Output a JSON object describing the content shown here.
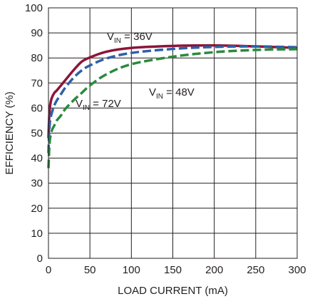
{
  "chart_data": {
    "type": "line",
    "xlabel": "LOAD CURRENT (mA)",
    "ylabel": "EFFICIENCY (%)",
    "xlim": [
      0,
      300
    ],
    "ylim": [
      0,
      100
    ],
    "x_ticks": [
      "0",
      "50",
      "100",
      "150",
      "200",
      "250",
      "300"
    ],
    "y_ticks": [
      "0",
      "10",
      "20",
      "30",
      "40",
      "50",
      "60",
      "70",
      "80",
      "90",
      "100"
    ],
    "grid": true,
    "series": [
      {
        "name_main": "V",
        "name_sub": "IN",
        "name_value": " = 36V",
        "color": "#8b1538",
        "style": "solid",
        "x": [
          0,
          0.5,
          1,
          2,
          4,
          7,
          10,
          15,
          20,
          30,
          40,
          50,
          70,
          100,
          150,
          200,
          250,
          300
        ],
        "y": [
          48,
          53,
          57,
          61,
          64,
          66,
          67,
          69,
          71,
          75,
          78.5,
          80.2,
          82.5,
          84,
          84.8,
          85,
          84.6,
          84
        ]
      },
      {
        "name_main": "V",
        "name_sub": "IN",
        "name_value": " = 48V",
        "color": "#2e5fa8",
        "style": "dashed",
        "x": [
          0,
          0.5,
          1,
          2,
          4,
          7,
          10,
          15,
          20,
          30,
          40,
          50,
          70,
          100,
          150,
          200,
          250,
          300
        ],
        "y": [
          42,
          47,
          51,
          55,
          58,
          61,
          63,
          65.5,
          68,
          72,
          75,
          77,
          79.8,
          82,
          83.6,
          84.4,
          84.6,
          84.3
        ]
      },
      {
        "name_main": "V",
        "name_sub": "IN",
        "name_value": " = 72V",
        "color": "#2a8a3c",
        "style": "dashed",
        "x": [
          0,
          0.5,
          1,
          2,
          4,
          7,
          10,
          15,
          20,
          30,
          40,
          50,
          70,
          100,
          150,
          200,
          250,
          300
        ],
        "y": [
          36,
          40,
          44,
          48,
          51,
          53,
          55,
          57,
          59.5,
          63,
          66,
          69,
          73.5,
          77.5,
          80.5,
          82.3,
          83.2,
          83.5
        ]
      }
    ]
  }
}
